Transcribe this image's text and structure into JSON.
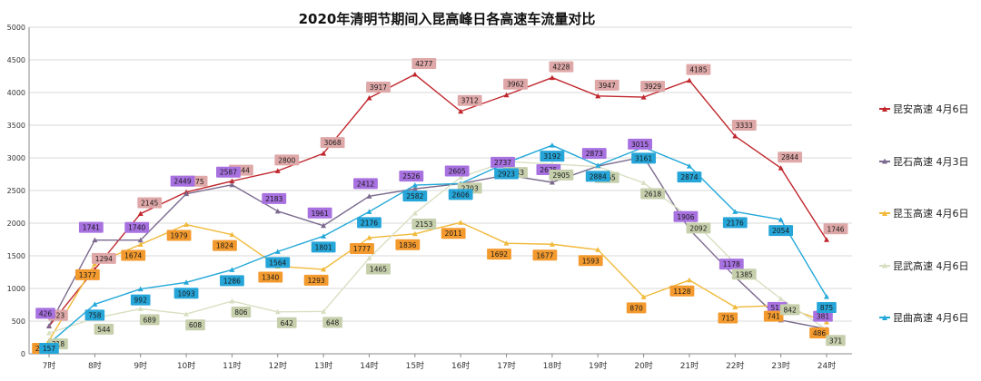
{
  "chart_data": {
    "type": "line",
    "title": "2020年清明节期间入昆高峰日各高速车流量对比",
    "xlabel": "",
    "ylabel": "",
    "ylim": [
      0,
      5000
    ],
    "yticks": [
      0,
      500,
      1000,
      1500,
      2000,
      2500,
      3000,
      3500,
      4000,
      4500,
      5000
    ],
    "grid": "horizontal",
    "legend_position": "right",
    "categories": [
      "7时",
      "8时",
      "9时",
      "10时",
      "11时",
      "12时",
      "13时",
      "14时",
      "15时",
      "16时",
      "17时",
      "18时",
      "19时",
      "20时",
      "21时",
      "22时",
      "23时",
      "24时"
    ],
    "series": [
      {
        "name": "昆安高速 4月6日",
        "color": "#c0262c",
        "marker": "triangle",
        "label_bg": "#dfa8a8",
        "values": [
          423,
          1294,
          2145,
          2475,
          2644,
          2800,
          3068,
          3917,
          4277,
          3712,
          3962,
          4228,
          3947,
          3929,
          4185,
          3333,
          2844,
          1746
        ]
      },
      {
        "name": "昆石高速 4月3日",
        "color": "#7b6a8e",
        "marker": "triangle",
        "label_bg": "#a771e0",
        "values": [
          426,
          1741,
          1740,
          2449,
          2587,
          2183,
          1961,
          2412,
          2526,
          2605,
          2737,
          2625,
          2873,
          3015,
          1906,
          1178,
          515,
          381
        ]
      },
      {
        "name": "昆玉高速 4月6日",
        "color": "#f1b93a",
        "marker": "triangle",
        "label_bg": "#f39a2e",
        "values": [
          202,
          1377,
          1674,
          1979,
          1824,
          1340,
          1293,
          1777,
          1836,
          2011,
          1692,
          1677,
          1593,
          870,
          1128,
          715,
          741,
          486
        ]
      },
      {
        "name": "昆武高速 4月6日",
        "color": "#d8dfc1",
        "marker": "triangle",
        "label_bg": "#c6cfac",
        "values": [
          318,
          544,
          689,
          608,
          806,
          642,
          648,
          1465,
          2153,
          2703,
          2943,
          2905,
          2865,
          2618,
          2092,
          1385,
          842,
          371
        ]
      },
      {
        "name": "昆曲高速 4月6日",
        "color": "#23a8d9",
        "marker": "triangle",
        "label_bg": "#26a5d8",
        "values": [
          157,
          758,
          992,
          1093,
          1286,
          1564,
          1801,
          2176,
          2582,
          2606,
          2923,
          3192,
          2884,
          3161,
          2874,
          2176,
          2054,
          875
        ]
      }
    ]
  }
}
